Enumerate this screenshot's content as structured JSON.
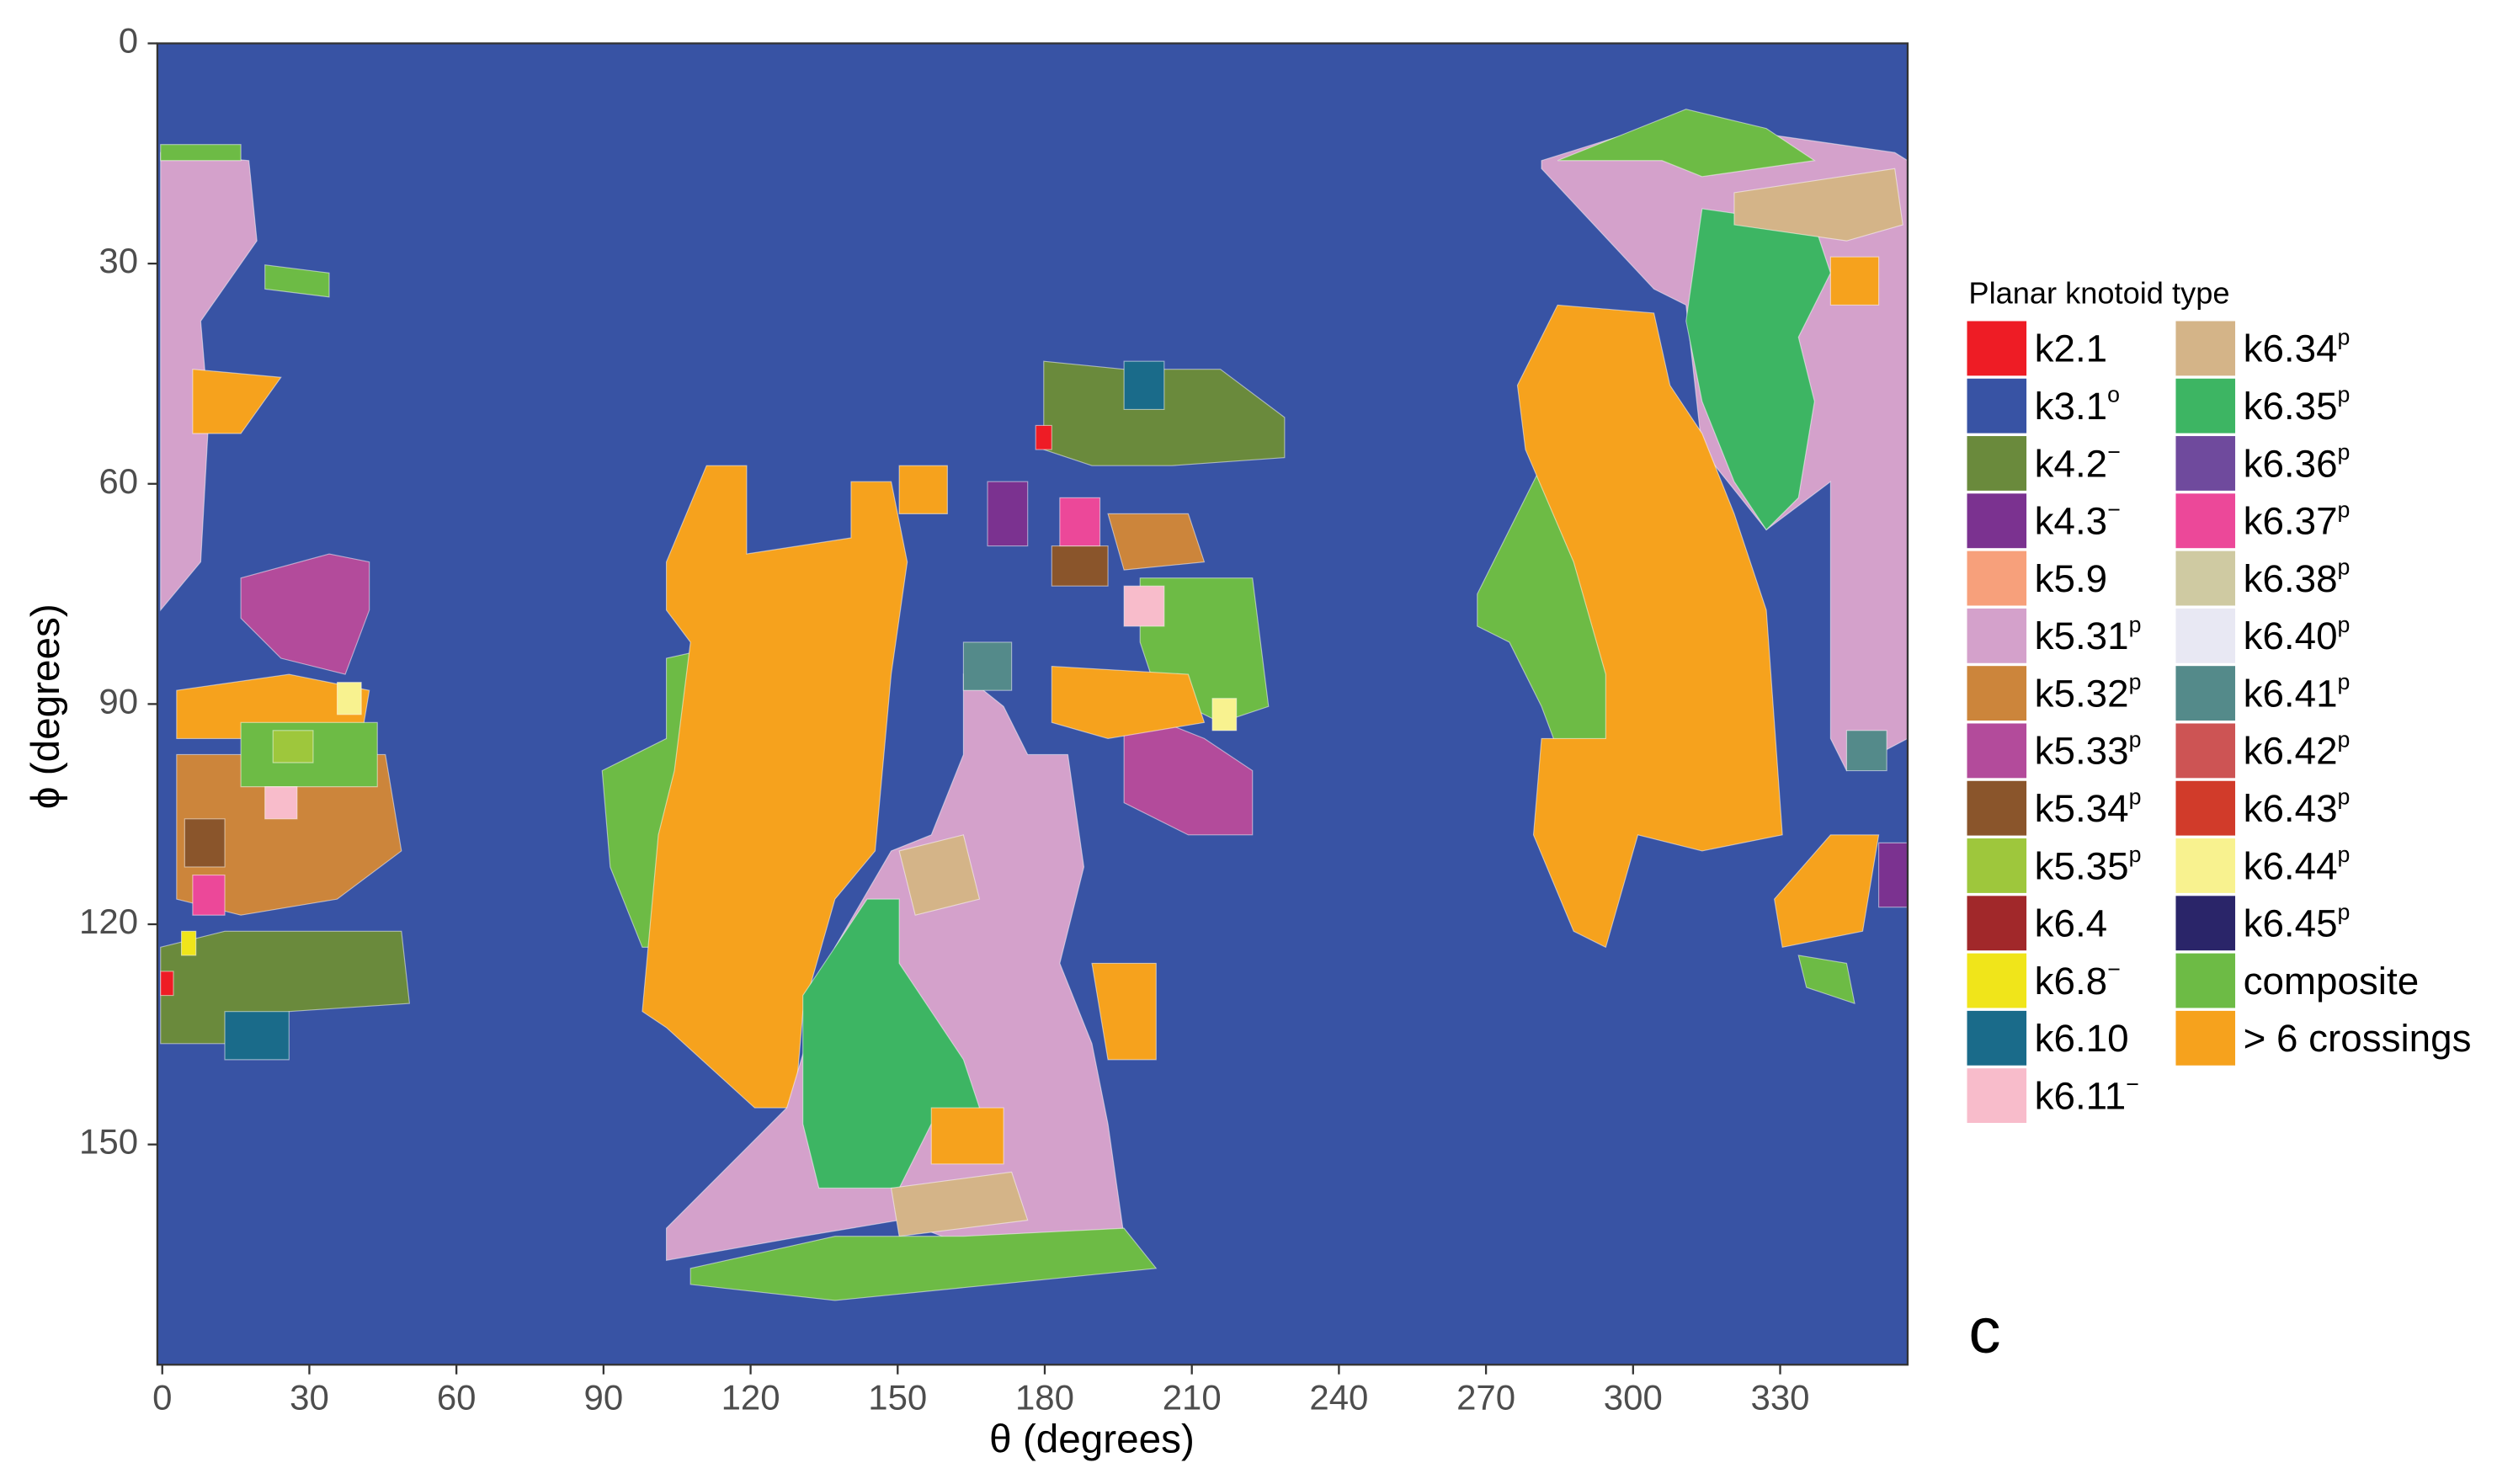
{
  "chart_data": {
    "type": "heatmap",
    "x_label": "θ (degrees)",
    "y_label": "ϕ (degrees)",
    "xlim": [
      -1,
      356
    ],
    "ylim": [
      0,
      180
    ],
    "y_inverted": true,
    "xticks": [
      0,
      30,
      60,
      90,
      120,
      150,
      180,
      210,
      240,
      270,
      300,
      330
    ],
    "yticks": [
      0,
      30,
      60,
      90,
      120,
      150
    ],
    "legend_title": "Planar knotoid type",
    "panel_label": "c",
    "series": [
      {
        "name": "k2.1",
        "color": "#ee1c25"
      },
      {
        "name": "k3.1",
        "superscript": "o",
        "color": "#3853a4"
      },
      {
        "name": "k4.2",
        "superscript": "−",
        "color": "#6a8a3c"
      },
      {
        "name": "k4.3",
        "superscript": "−",
        "color": "#7b3290"
      },
      {
        "name": "k5.9",
        "color": "#f7a07b"
      },
      {
        "name": "k5.31",
        "superscript": "p",
        "color": "#d4a1cb"
      },
      {
        "name": "k5.32",
        "superscript": "p",
        "color": "#cc853b"
      },
      {
        "name": "k5.33",
        "superscript": "p",
        "color": "#b34b9b"
      },
      {
        "name": "k5.34",
        "superscript": "p",
        "color": "#8a552b"
      },
      {
        "name": "k5.35",
        "superscript": "p",
        "color": "#9ec73c"
      },
      {
        "name": "k6.4",
        "color": "#a1282a"
      },
      {
        "name": "k6.8",
        "superscript": "−",
        "color": "#f0e51a"
      },
      {
        "name": "k6.10",
        "color": "#1a6b8a"
      },
      {
        "name": "k6.11",
        "superscript": "−",
        "color": "#f8bccb"
      },
      {
        "name": "k6.34",
        "superscript": "p",
        "color": "#d4b488"
      },
      {
        "name": "k6.35",
        "superscript": "p",
        "color": "#3db563"
      },
      {
        "name": "k6.36",
        "superscript": "p",
        "color": "#6f4a9d"
      },
      {
        "name": "k6.37",
        "superscript": "p",
        "color": "#ec4899"
      },
      {
        "name": "k6.38",
        "superscript": "p",
        "color": "#cfcaa2"
      },
      {
        "name": "k6.40",
        "superscript": "p",
        "color": "#e8e8f3"
      },
      {
        "name": "k6.41",
        "superscript": "p",
        "color": "#548a8a"
      },
      {
        "name": "k6.42",
        "superscript": "p",
        "color": "#cd5454"
      },
      {
        "name": "k6.43",
        "superscript": "p",
        "color": "#d13b2a"
      },
      {
        "name": "k6.44",
        "superscript": "p",
        "color": "#f8f28f"
      },
      {
        "name": "k6.45",
        "superscript": "p",
        "color": "#2a2569"
      },
      {
        "name": "composite",
        "color": "#6dbb45"
      },
      {
        "name": "> 6 crossings",
        "color": "#f6a21d"
      }
    ]
  }
}
